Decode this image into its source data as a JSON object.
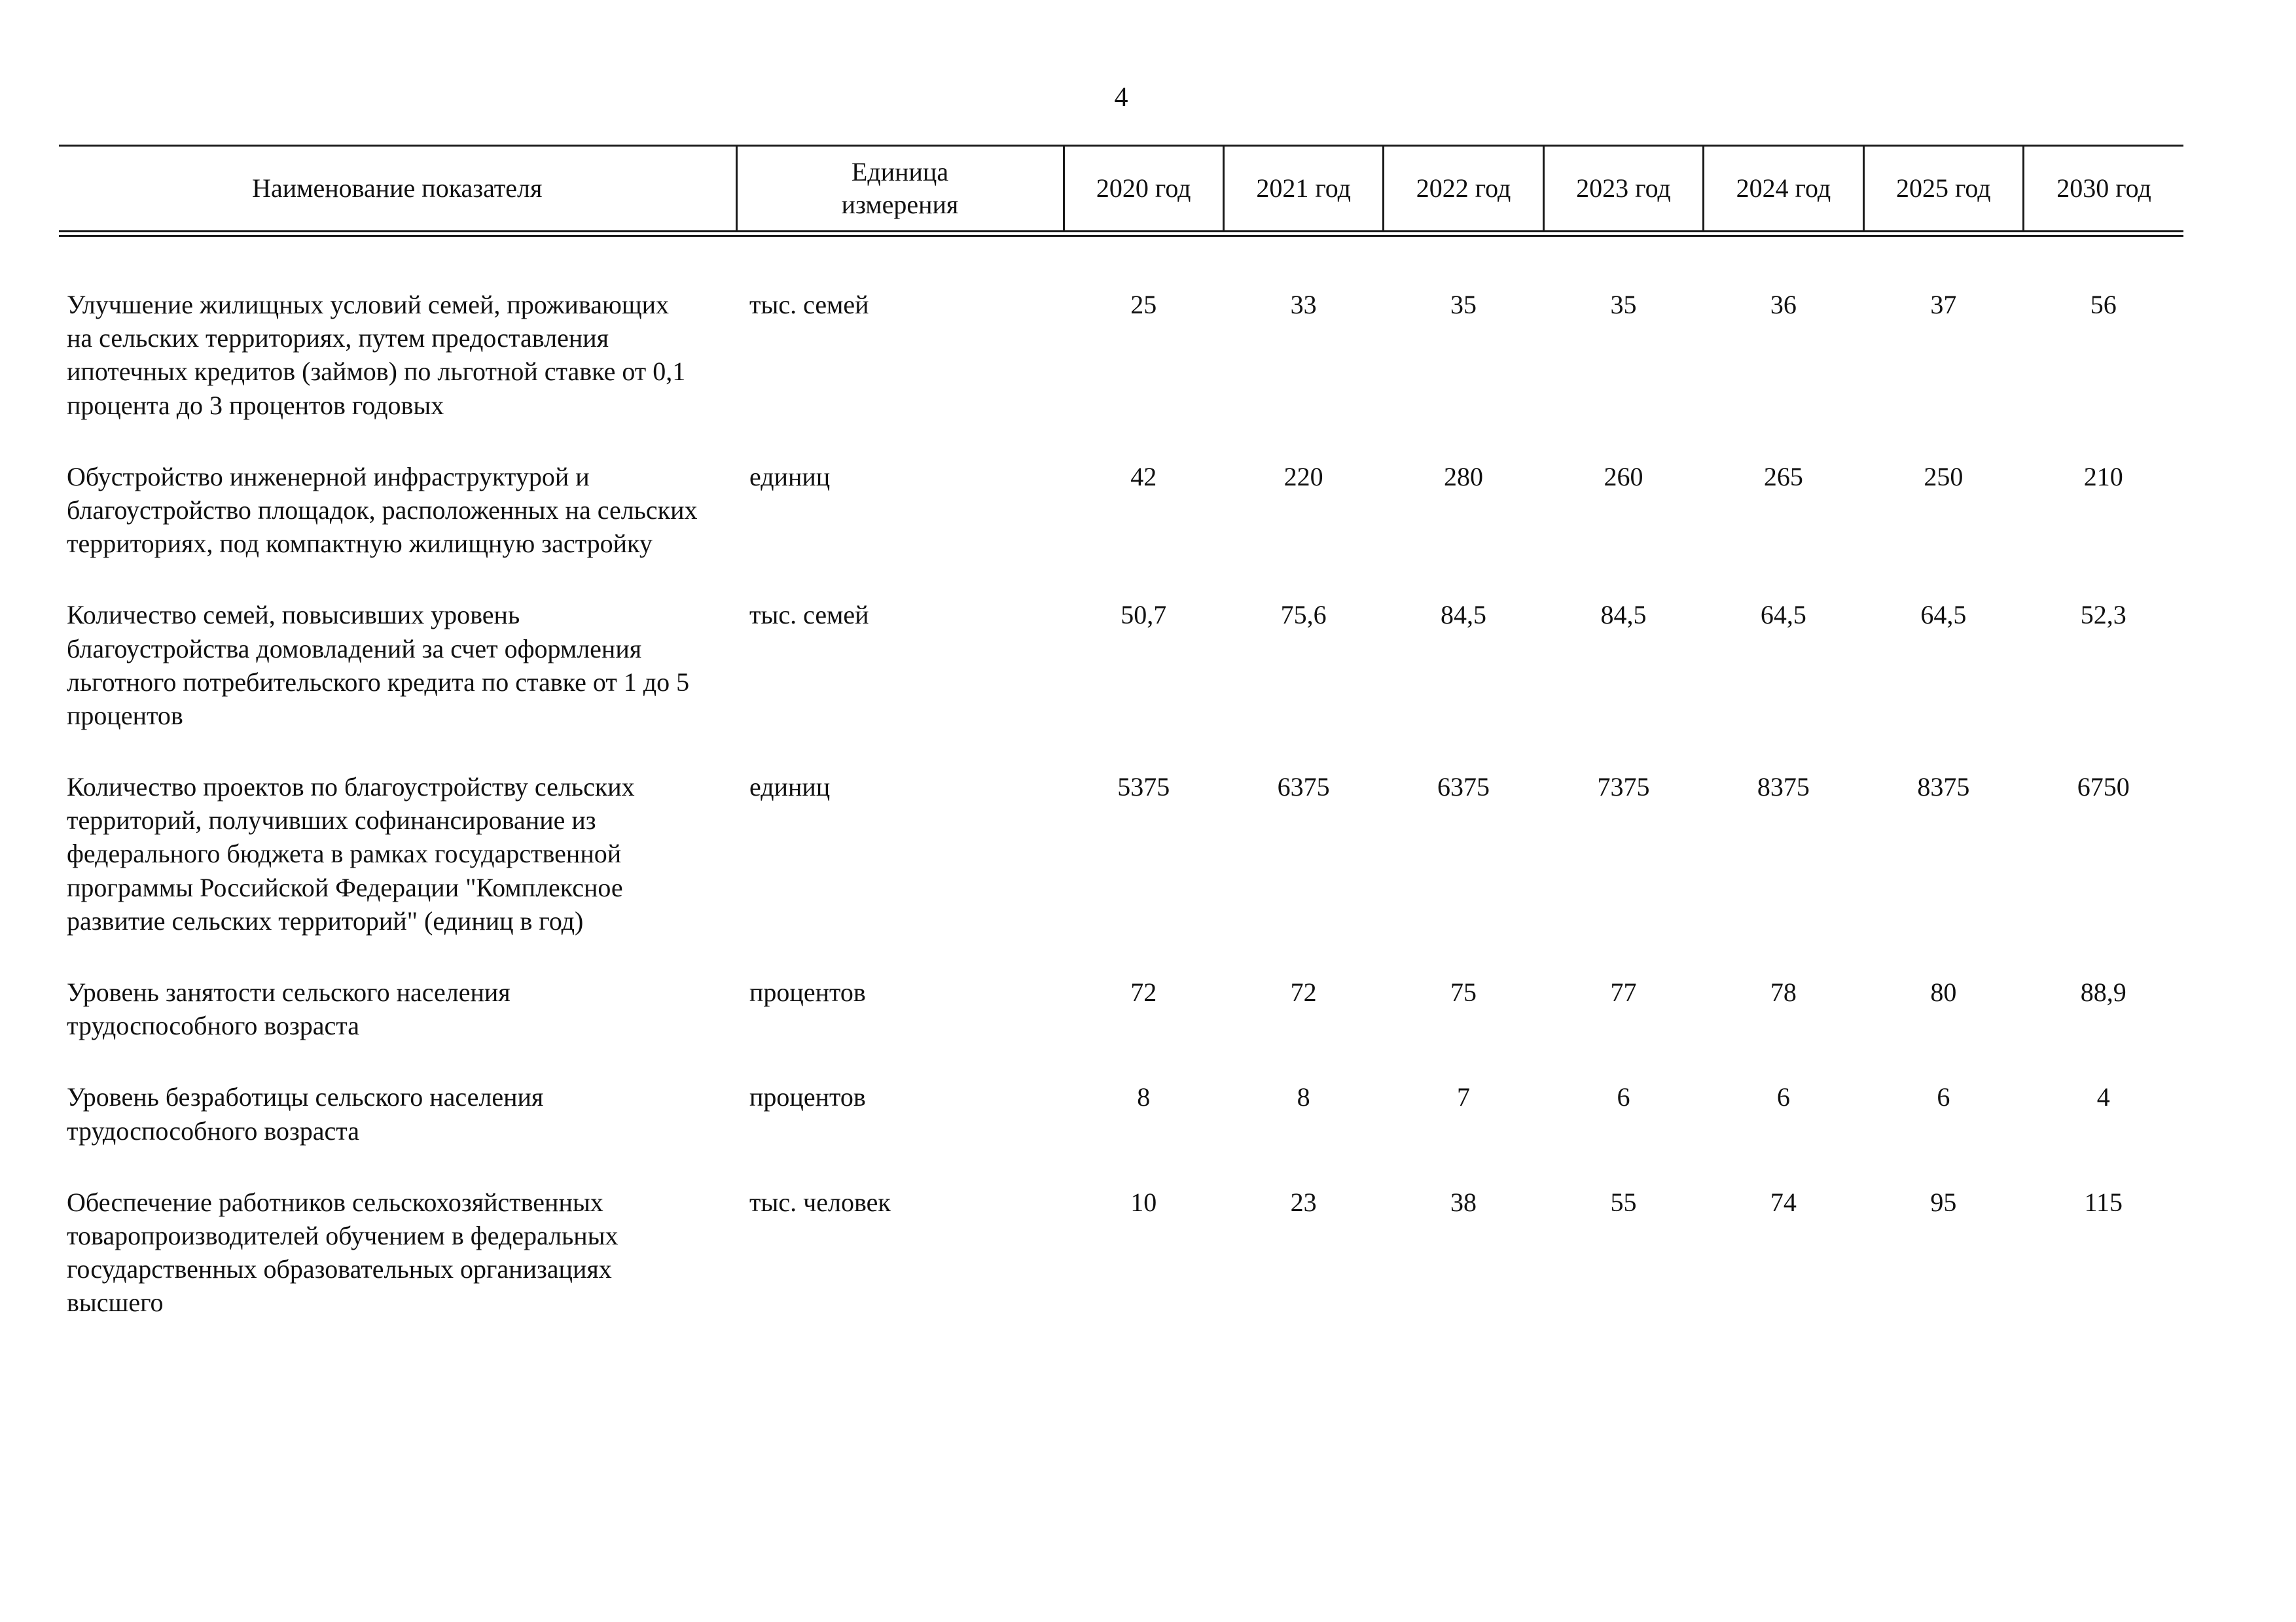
{
  "page_number": "4",
  "table": {
    "headers": {
      "name": "Наименование показателя",
      "unit": "Единица\nизмерения",
      "years": [
        "2020 год",
        "2021 год",
        "2022 год",
        "2023 год",
        "2024 год",
        "2025 год",
        "2030 год"
      ]
    },
    "rows": [
      {
        "name": "Улучшение жилищных условий семей, проживающих на сельских территориях, путем предоставления ипотечных кредитов (займов) по льготной ставке от 0,1 процента до 3 процентов годовых",
        "unit": "тыс. семей",
        "values": [
          "25",
          "33",
          "35",
          "35",
          "36",
          "37",
          "56"
        ]
      },
      {
        "name": "Обустройство инженерной инфраструктурой и благоустройство площадок, расположенных на сельских территориях, под компактную жилищную застройку",
        "unit": "единиц",
        "values": [
          "42",
          "220",
          "280",
          "260",
          "265",
          "250",
          "210"
        ]
      },
      {
        "name": "Количество семей, повысивших уровень благоустройства домовладений за счет оформления льготного потребительского кредита по ставке от 1 до 5 процентов",
        "unit": "тыс. семей",
        "values": [
          "50,7",
          "75,6",
          "84,5",
          "84,5",
          "64,5",
          "64,5",
          "52,3"
        ]
      },
      {
        "name": "Количество проектов по благоустройству сельских территорий, получивших софинансирование из федерального бюджета в рамках государственной программы Российской Федерации \"Комплексное развитие сельских территорий\" (единиц в год)",
        "unit": "единиц",
        "values": [
          "5375",
          "6375",
          "6375",
          "7375",
          "8375",
          "8375",
          "6750"
        ]
      },
      {
        "name": "Уровень занятости сельского населения трудоспособного возраста",
        "unit": "процентов",
        "values": [
          "72",
          "72",
          "75",
          "77",
          "78",
          "80",
          "88,9"
        ]
      },
      {
        "name": "Уровень безработицы сельского населения трудоспособного возраста",
        "unit": "процентов",
        "values": [
          "8",
          "8",
          "7",
          "6",
          "6",
          "6",
          "4"
        ]
      },
      {
        "name": "Обеспечение работников сельскохозяйственных товаропроизводителей обучением в федеральных государственных образовательных организациях высшего",
        "unit": "тыс. человек",
        "values": [
          "10",
          "23",
          "38",
          "55",
          "74",
          "95",
          "115"
        ]
      }
    ]
  }
}
